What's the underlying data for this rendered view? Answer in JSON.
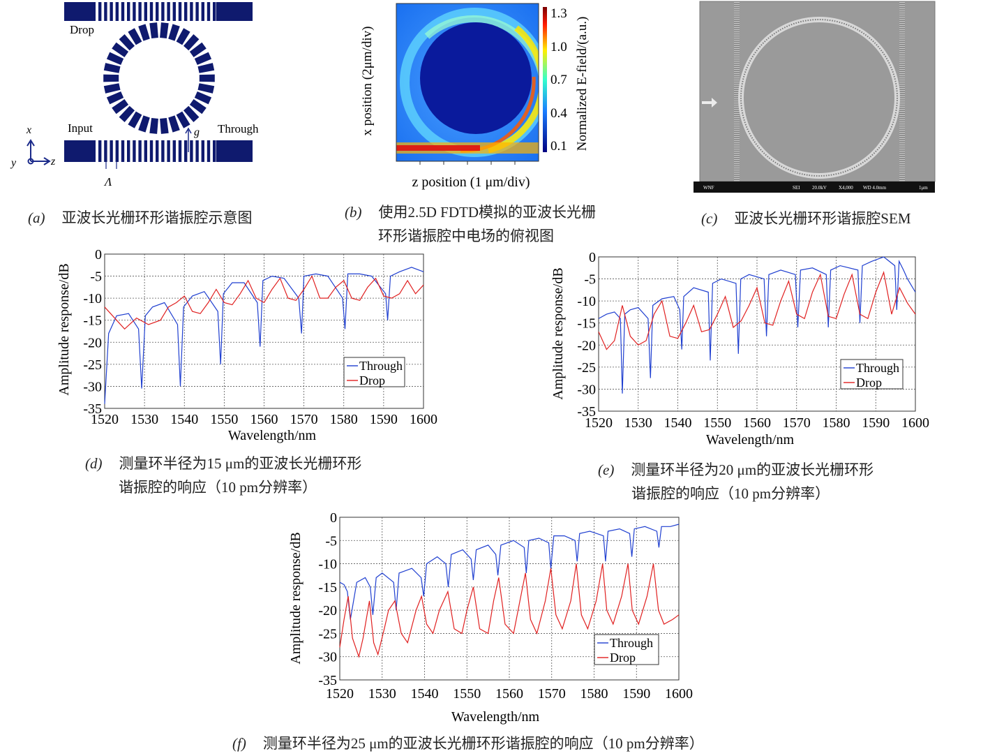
{
  "panel_a": {
    "labels": {
      "drop": "Drop",
      "input": "Input",
      "through": "Through",
      "axis_x": "x",
      "axis_y": "y",
      "axis_z": "z",
      "gap": "g",
      "period": "Λ"
    },
    "caption": {
      "letter": "(a)",
      "text": "亚波长光栅环形谐振腔示意图"
    },
    "colors": {
      "structure": "#0f1a6e"
    }
  },
  "panel_b": {
    "xlabel": "z position (1 μm/div)",
    "ylabel": "x position (2μm/div)",
    "colorbar_label": "Normalized E-field/(a.u.)",
    "colorbar_ticks": [
      "1.3",
      "1.0",
      "0.7",
      "0.4",
      "0.1"
    ],
    "caption": {
      "letter": "(b)",
      "line1": "使用2.5D FDTD模拟的亚波长光栅",
      "line2": "环形谐振腔中电场的俯视图"
    }
  },
  "panel_c": {
    "sem_bar": [
      "WNF",
      "SEI",
      "20.0kV",
      "X4,000",
      "WD 4.0mm",
      "1μm"
    ],
    "caption": {
      "letter": "(c)",
      "text": "亚波长光栅环形谐振腔SEM"
    }
  },
  "chart_data": [
    {
      "id": "d",
      "type": "line",
      "xlabel": "Wavelength/nm",
      "ylabel": "Amplitude response/dB",
      "xlim": [
        1520,
        1600
      ],
      "ylim": [
        -35,
        0
      ],
      "grid": true,
      "legend": "bottom-right",
      "xticks": [
        1520,
        1530,
        1540,
        1550,
        1560,
        1570,
        1580,
        1590,
        1600
      ],
      "yticks": [
        0,
        -5,
        -10,
        -15,
        -20,
        -25,
        -30,
        -35
      ],
      "series": [
        {
          "name": "Through",
          "color": "#1f3fd0",
          "x": [
            1520,
            1521,
            1523,
            1526,
            1528.5,
            1529.3,
            1530.2,
            1532,
            1535,
            1538.3,
            1539,
            1539.8,
            1542,
            1545,
            1548.4,
            1549.1,
            1549.8,
            1552,
            1555,
            1558.3,
            1559,
            1559.7,
            1562,
            1565,
            1568.7,
            1569.4,
            1570,
            1573,
            1576,
            1579.7,
            1580.3,
            1581,
            1584,
            1587,
            1590.5,
            1591,
            1591.7,
            1594,
            1597,
            1600
          ],
          "y": [
            -34,
            -18,
            -14,
            -13.5,
            -17,
            -30.5,
            -14,
            -12,
            -11,
            -16,
            -30,
            -12,
            -9.5,
            -8.5,
            -13,
            -25,
            -9,
            -6.5,
            -6.5,
            -11,
            -21,
            -6,
            -5,
            -5.5,
            -10,
            -18,
            -5,
            -4.5,
            -5,
            -10,
            -17,
            -4.5,
            -4.5,
            -5,
            -9,
            -15,
            -5,
            -4,
            -3,
            -4
          ]
        },
        {
          "name": "Drop",
          "color": "#e02020",
          "x": [
            1520,
            1523,
            1525,
            1528,
            1531,
            1534,
            1536,
            1538,
            1540,
            1542,
            1544,
            1546,
            1548,
            1550,
            1552,
            1554,
            1556,
            1558,
            1560,
            1562,
            1564,
            1566,
            1568,
            1570,
            1572,
            1574,
            1576,
            1578,
            1580,
            1582,
            1584,
            1586,
            1588,
            1590,
            1592,
            1594,
            1596,
            1598,
            1600
          ],
          "y": [
            -12,
            -15,
            -17,
            -14.5,
            -16,
            -15,
            -12,
            -11,
            -9.5,
            -13,
            -13.5,
            -11,
            -8,
            -11,
            -11.5,
            -9,
            -6,
            -10,
            -11,
            -8,
            -5.5,
            -10,
            -10.5,
            -8,
            -5,
            -10,
            -10,
            -7.5,
            -6,
            -10,
            -10.5,
            -7.5,
            -5.5,
            -9.5,
            -10,
            -9,
            -6,
            -9,
            -7
          ]
        }
      ],
      "caption": {
        "letter": "(d)",
        "line1": "测量环半径为15 μm的亚波长光栅环形",
        "line2": "谐振腔的响应（10 pm分辨率）"
      }
    },
    {
      "id": "e",
      "type": "line",
      "xlabel": "Wavelength/nm",
      "ylabel": "Amplitude response/dB",
      "xlim": [
        1520,
        1600
      ],
      "ylim": [
        -35,
        0
      ],
      "grid": true,
      "legend": "bottom-right",
      "xticks": [
        1520,
        1530,
        1540,
        1550,
        1560,
        1570,
        1580,
        1590,
        1600
      ],
      "yticks": [
        0,
        -5,
        -10,
        -15,
        -20,
        -25,
        -30,
        -35
      ],
      "series": [
        {
          "name": "Through",
          "color": "#1f3fd0",
          "x": [
            1520,
            1522,
            1524,
            1525.5,
            1526,
            1526.6,
            1528,
            1530,
            1532.5,
            1533.1,
            1533.7,
            1536,
            1539,
            1540.5,
            1541,
            1541.5,
            1544,
            1547.7,
            1548.2,
            1548.8,
            1551,
            1554.7,
            1555.3,
            1555.9,
            1558,
            1561.8,
            1562.4,
            1563,
            1566,
            1569.7,
            1570.3,
            1571,
            1574,
            1577.5,
            1578,
            1578.6,
            1581,
            1585.5,
            1586,
            1586.6,
            1589,
            1592,
            1594.8,
            1595.3,
            1595.9,
            1597,
            1598,
            1600
          ],
          "y": [
            -14,
            -13,
            -12.5,
            -14,
            -31,
            -13,
            -12,
            -11.5,
            -14,
            -27.5,
            -11,
            -9.5,
            -9,
            -12,
            -21,
            -9,
            -7,
            -8,
            -23.5,
            -6,
            -5,
            -6,
            -22,
            -5,
            -4,
            -5,
            -18,
            -4,
            -3,
            -4,
            -16,
            -3,
            -2.5,
            -4,
            -16,
            -3,
            -2,
            -3,
            -15,
            -2,
            -1,
            0,
            -2,
            -12,
            -1,
            -3,
            -5,
            -8
          ]
        },
        {
          "name": "Drop",
          "color": "#e02020",
          "x": [
            1520,
            1522,
            1524,
            1526,
            1528,
            1530,
            1532,
            1534,
            1536,
            1538,
            1540,
            1542,
            1544,
            1546,
            1548,
            1550,
            1552,
            1554,
            1556,
            1558,
            1560,
            1562,
            1564,
            1566,
            1568,
            1570,
            1572,
            1574,
            1576,
            1578,
            1580,
            1582,
            1584,
            1586,
            1588,
            1590,
            1592,
            1594,
            1596,
            1598,
            1600
          ],
          "y": [
            -17,
            -21,
            -19,
            -11,
            -18,
            -20,
            -19,
            -13,
            -10,
            -18,
            -18.5,
            -15,
            -11,
            -17,
            -16.5,
            -13,
            -9,
            -16,
            -14.5,
            -11,
            -7,
            -15,
            -15.5,
            -10,
            -5.5,
            -13,
            -14,
            -8,
            -4,
            -13.5,
            -14,
            -8.5,
            -4,
            -13,
            -14,
            -8,
            -3.5,
            -13,
            -7,
            -10.5,
            -13
          ]
        }
      ],
      "caption": {
        "letter": "(e)",
        "line1": "测量环半径为20 μm的亚波长光栅环形",
        "line2": "谐振腔的响应（10 pm分辨率）"
      }
    },
    {
      "id": "f",
      "type": "line",
      "xlabel": "Wavelength/nm",
      "ylabel": "Amplitude response/dB",
      "xlim": [
        1520,
        1600
      ],
      "ylim": [
        -35,
        0
      ],
      "grid": true,
      "legend": "bottom-right",
      "xticks": [
        1520,
        1530,
        1540,
        1550,
        1560,
        1570,
        1580,
        1590,
        1600
      ],
      "yticks": [
        0,
        -5,
        -10,
        -15,
        -20,
        -25,
        -30,
        -35
      ],
      "series": [
        {
          "name": "Through",
          "color": "#1f3fd0",
          "x": [
            1520,
            1521,
            1521.8,
            1522.5,
            1524,
            1526,
            1527.2,
            1527.8,
            1528.6,
            1530,
            1532.7,
            1533.3,
            1534,
            1537,
            1539.2,
            1539.8,
            1540.5,
            1543,
            1545,
            1545.6,
            1546.3,
            1549,
            1551,
            1551.5,
            1552.2,
            1555,
            1556.8,
            1557.3,
            1558,
            1561,
            1563.5,
            1564,
            1564.6,
            1567,
            1569.3,
            1569.8,
            1570.5,
            1573,
            1575.5,
            1576,
            1576.6,
            1579,
            1582.2,
            1582.7,
            1583.3,
            1586,
            1588.4,
            1588.9,
            1589.5,
            1592,
            1594.8,
            1595.3,
            1595.9,
            1598,
            1600
          ],
          "y": [
            -14,
            -14.5,
            -16,
            -22,
            -14,
            -13,
            -15,
            -21,
            -13,
            -12,
            -14,
            -20,
            -12,
            -11,
            -13,
            -17,
            -10,
            -8.5,
            -10,
            -15,
            -8,
            -7,
            -9,
            -13.5,
            -7,
            -6,
            -8,
            -12.5,
            -6,
            -5,
            -6.5,
            -12,
            -5,
            -4.5,
            -5.5,
            -11,
            -4,
            -4,
            -5,
            -9.5,
            -3.5,
            -3,
            -4,
            -9.5,
            -3,
            -2.5,
            -3.5,
            -8.5,
            -2.5,
            -2,
            -3,
            -6.5,
            -2,
            -2,
            -1.5
          ]
        },
        {
          "name": "Drop",
          "color": "#e02020",
          "x": [
            1520,
            1521,
            1522,
            1523,
            1524.5,
            1525.5,
            1527,
            1528,
            1529,
            1530.5,
            1531.5,
            1533,
            1534.5,
            1536,
            1538,
            1539.3,
            1540.5,
            1542,
            1543.5,
            1545.5,
            1547,
            1548.8,
            1550,
            1551.5,
            1553,
            1555,
            1556.3,
            1557.5,
            1559,
            1561,
            1562.5,
            1563.8,
            1565,
            1566.5,
            1568.5,
            1569.8,
            1571,
            1572.5,
            1574.5,
            1575.8,
            1577,
            1578.5,
            1580.5,
            1582,
            1583,
            1584.5,
            1586.5,
            1588,
            1589,
            1590.5,
            1592.5,
            1594,
            1595.2,
            1596.5,
            1598.5,
            1600
          ],
          "y": [
            -28,
            -22,
            -17,
            -26,
            -30,
            -26,
            -18,
            -27,
            -29.5,
            -24,
            -20,
            -18,
            -25,
            -27,
            -20,
            -17,
            -23,
            -25,
            -20,
            -16,
            -24,
            -25,
            -20,
            -15,
            -24,
            -25,
            -18,
            -13,
            -23,
            -25,
            -18,
            -12,
            -22,
            -25,
            -18,
            -11,
            -21,
            -24,
            -18,
            -10,
            -21,
            -24,
            -18,
            -10,
            -20,
            -23,
            -17,
            -10,
            -20,
            -23,
            -17,
            -10,
            -20,
            -23,
            -22,
            -21
          ]
        }
      ],
      "caption": {
        "letter": "(f)",
        "text": "测量环半径为25 μm的亚波长光栅环形谐振腔的响应（10 pm分辨率）"
      }
    }
  ]
}
